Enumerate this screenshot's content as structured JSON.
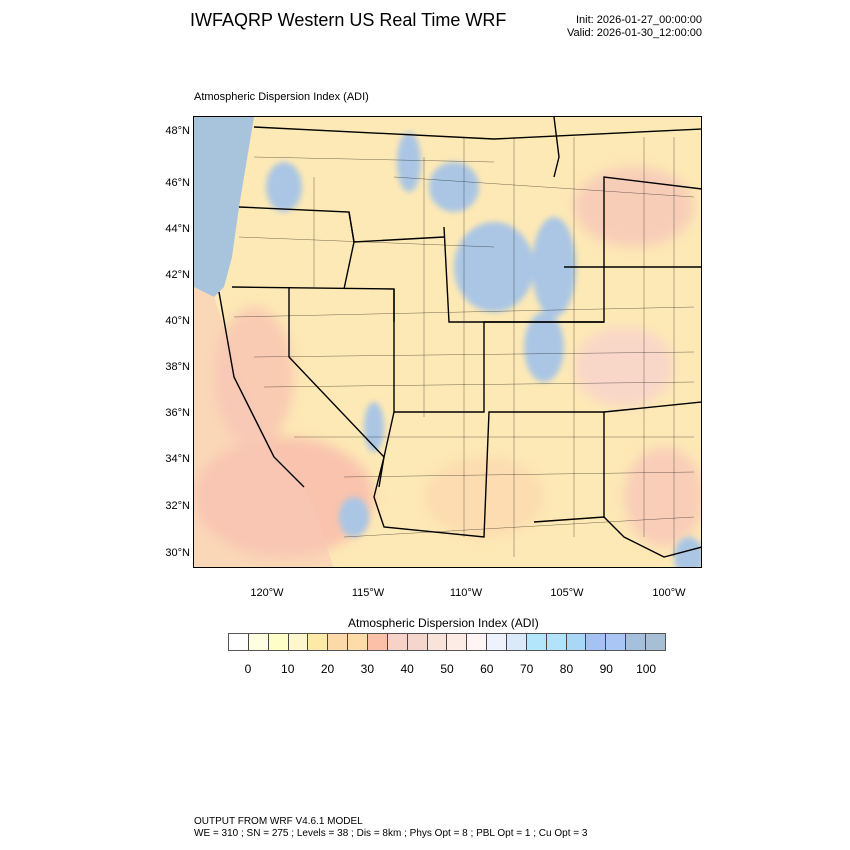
{
  "header": {
    "title": "IWFAQRP Western US Real Time WRF",
    "init": "Init: 2026-01-27_00:00:00",
    "valid": "Valid: 2026-01-30_12:00:00"
  },
  "map": {
    "subtitle": "Atmospheric Dispersion Index   (ADI)",
    "lat_labels": [
      "48°N",
      "46°N",
      "44°N",
      "42°N",
      "40°N",
      "38°N",
      "36°N",
      "34°N",
      "32°N",
      "30°N"
    ],
    "lon_labels": [
      "120°W",
      "115°W",
      "110°W",
      "105°W",
      "100°W"
    ],
    "colors": {
      "land_low": "#fde9b5",
      "ocean": "#a7c4dc",
      "high": "#a9c6e8",
      "mid": "#f9c8b8"
    }
  },
  "colorbar": {
    "title": "Atmospheric Dispersion Index  (ADI)",
    "labels": [
      "0",
      "10",
      "20",
      "30",
      "40",
      "50",
      "60",
      "70",
      "80",
      "90",
      "100"
    ],
    "colors": [
      "#ffffff",
      "#fefee0",
      "#fefec8",
      "#fcf7cc",
      "#fdeaa8",
      "#fcd9a8",
      "#fddcaa",
      "#fcc0a8",
      "#f7d2c8",
      "#f5d6cc",
      "#f8e4da",
      "#fdece6",
      "#fff5f5",
      "#eef2fc",
      "#dbeafb",
      "#b3e5fb",
      "#b3e2fb",
      "#a8d8f5",
      "#a4c2f4",
      "#a9c6f5",
      "#a5c0de",
      "#a6bfd5"
    ]
  },
  "footer": {
    "line1": "OUTPUT FROM WRF V4.6.1 MODEL",
    "line2": "WE = 310 ; SN = 275 ; Levels = 38 ; Dis = 8km ; Phys Opt = 8 ; PBL Opt = 1 ; Cu Opt = 3"
  }
}
